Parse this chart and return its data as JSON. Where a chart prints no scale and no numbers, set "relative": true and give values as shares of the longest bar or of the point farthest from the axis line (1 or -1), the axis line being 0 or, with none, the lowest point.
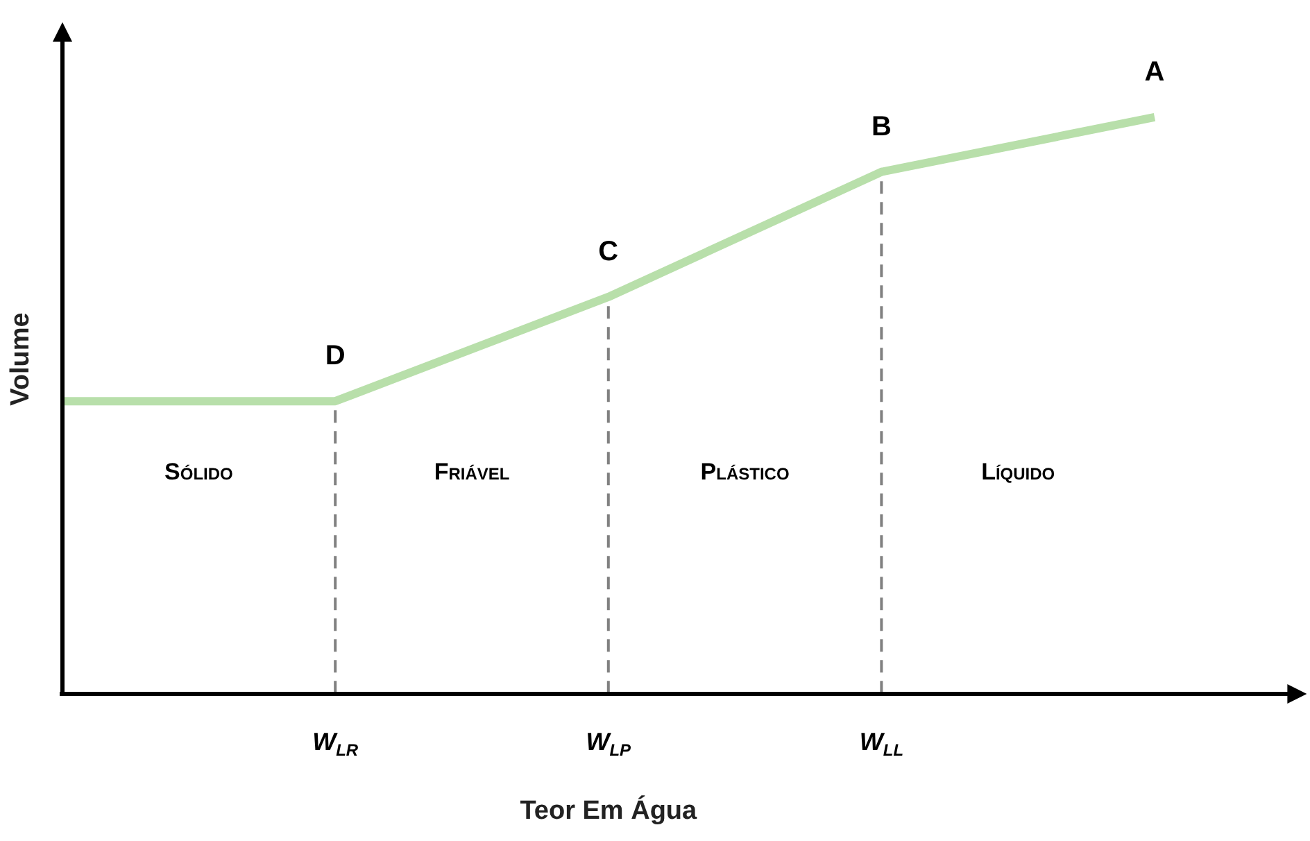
{
  "chart_data": {
    "type": "line",
    "relative": true,
    "xlabel": "Teor Em Água",
    "ylabel": "Volume",
    "categories": [
      null,
      "W$_{LR}$",
      "W$_{LP}$",
      "W$_{LL}$",
      null
    ],
    "series": [
      {
        "color": "#b8dfaa",
        "values": [
          0.507,
          0.507,
          0.688,
          0.905,
          1
        ]
      }
    ],
    "ref_lines": [
      {
        "axis": "x",
        "value": "W$_{LR}$",
        "color": "#808080",
        "line_style": "dashed"
      },
      {
        "axis": "x",
        "value": "W$_{LP}$",
        "color": "#808080",
        "line_style": "dashed"
      },
      {
        "axis": "x",
        "value": "W$_{LL}$",
        "color": "#808080",
        "line_style": "dashed"
      }
    ],
    "annotations": [
      {
        "text": "A",
        "y": 1
      },
      {
        "text": "B",
        "x": "W$_{LL}$",
        "y": 0.905
      },
      {
        "text": "C",
        "x": "W$_{LP}$",
        "y": 0.688
      },
      {
        "text": "D",
        "x": "W$_{LR}$",
        "y": 0.507
      },
      "Sólido",
      "Friável",
      "Plástico",
      "Líquido"
    ],
    "marker": "none",
    "line_style": "solid",
    "grid": false,
    "legend": false
  }
}
